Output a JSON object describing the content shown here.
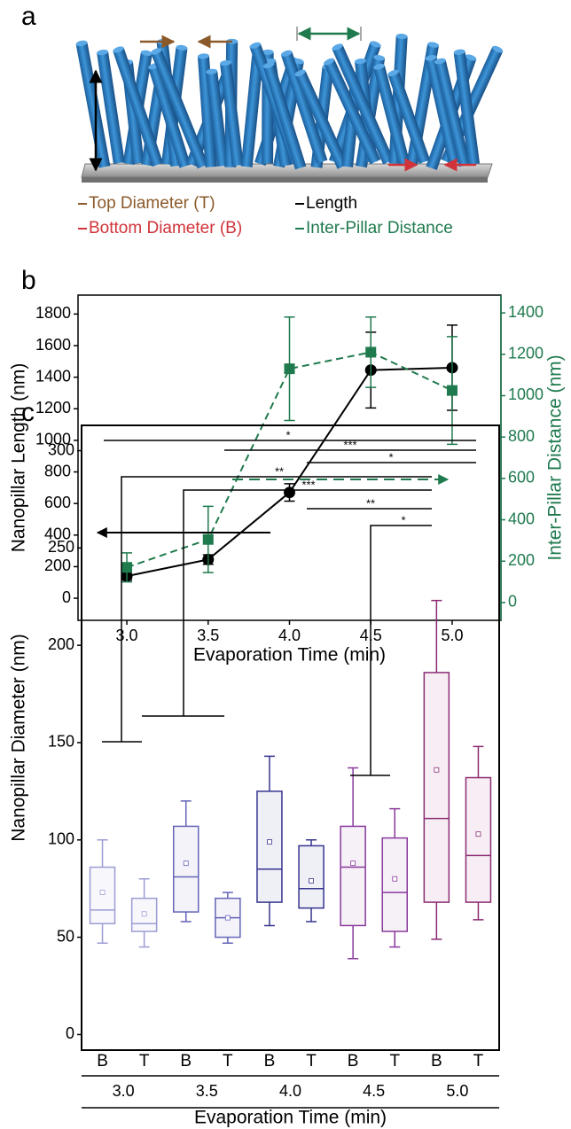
{
  "panel_a": {
    "label": "a",
    "legend": [
      {
        "text": "Top Diameter (T)",
        "color": "#8b5a2b"
      },
      {
        "text": "Bottom Diameter (B)",
        "color": "#d0343a"
      },
      {
        "text": "Length",
        "color": "#000000"
      },
      {
        "text": "Inter-Pillar Distance",
        "color": "#1f7a4d"
      }
    ]
  },
  "chart_data": [
    {
      "type": "line",
      "panel_label": "b",
      "x": [
        3.0,
        3.5,
        4.0,
        4.5,
        5.0
      ],
      "xlim": [
        2.7,
        5.3
      ],
      "xticks": [
        {
          "value": 3.0,
          "label": "3.0"
        },
        {
          "value": 3.5,
          "label": "3.5"
        },
        {
          "value": 4.0,
          "label": "4.0"
        },
        {
          "value": 4.5,
          "label": "4.5"
        },
        {
          "value": 5.0,
          "label": "5.0"
        }
      ],
      "ylim": [
        -140,
        1920
      ],
      "yticks": [
        0,
        200,
        400,
        600,
        800,
        1000,
        1200,
        1400,
        1600,
        1800
      ],
      "y2lim": [
        -86,
        1486
      ],
      "y2ticks": [
        0,
        200,
        400,
        600,
        800,
        1000,
        1200,
        1400
      ],
      "xlabel": "Evaporation Time (min)",
      "ylabel": "Nanopillar Length (nm)",
      "y2label": "Inter-Pillar Distance (nm)",
      "y2color": "#1f7a4d",
      "series": [
        {
          "color": "#000000",
          "marker": "circle",
          "dashed": false,
          "values": [
            140,
            245,
            670,
            1445,
            1460
          ],
          "errors": [
            25,
            30,
            55,
            240,
            270
          ]
        },
        {
          "color": "#1f7a4d",
          "marker": "square",
          "dashed": true,
          "axis": "y2",
          "values": [
            170,
            305,
            1130,
            1210,
            1025
          ],
          "errors": [
            70,
            160,
            250,
            170,
            260
          ]
        }
      ]
    },
    {
      "type": "box",
      "panel_label": "c",
      "categories": [
        "B",
        "T",
        "B",
        "T",
        "B",
        "T",
        "B",
        "T",
        "B",
        "T"
      ],
      "groups": [
        "3.0",
        "3.5",
        "4.0",
        "4.5",
        "5.0"
      ],
      "ylim": [
        -8,
        313
      ],
      "yticks": [
        0,
        50,
        100,
        150,
        200,
        250,
        300
      ],
      "xlabel": "Evaporation Time (min)",
      "ylabel": "Nanopillar Diameter (nm)",
      "boxes": [
        {
          "min": 47,
          "q1": 57,
          "median": 64,
          "q3": 86,
          "max": 100,
          "mean": 73,
          "color": "#9c9cd4"
        },
        {
          "min": 45,
          "q1": 53,
          "median": 57,
          "q3": 70,
          "max": 80,
          "mean": 62,
          "color": "#9c9cd4"
        },
        {
          "min": 58,
          "q1": 63,
          "median": 81,
          "q3": 107,
          "max": 120,
          "mean": 88,
          "color": "#6464b8"
        },
        {
          "min": 47,
          "q1": 50,
          "median": 60,
          "q3": 70,
          "max": 73,
          "mean": 60,
          "color": "#6464b8"
        },
        {
          "min": 56,
          "q1": 68,
          "median": 85,
          "q3": 125,
          "max": 143,
          "mean": 99,
          "color": "#35358f"
        },
        {
          "min": 58,
          "q1": 65,
          "median": 75,
          "q3": 97,
          "max": 100,
          "mean": 79,
          "color": "#35358f"
        },
        {
          "min": 39,
          "q1": 56,
          "median": 86,
          "q3": 107,
          "max": 137,
          "mean": 88,
          "color": "#8a3a9c"
        },
        {
          "min": 45,
          "q1": 53,
          "median": 73,
          "q3": 101,
          "max": 116,
          "mean": 80,
          "color": "#8a3a9c"
        },
        {
          "min": 49,
          "q1": 68,
          "median": 111,
          "q3": 186,
          "max": 223,
          "mean": 136,
          "color": "#8c2a72"
        },
        {
          "min": 59,
          "q1": 68,
          "median": 92,
          "q3": 132,
          "max": 148,
          "mean": 103,
          "color": "#8c2a72"
        }
      ],
      "significance": [
        "*",
        "***",
        "*",
        "**",
        "***",
        "**",
        "*"
      ]
    }
  ]
}
